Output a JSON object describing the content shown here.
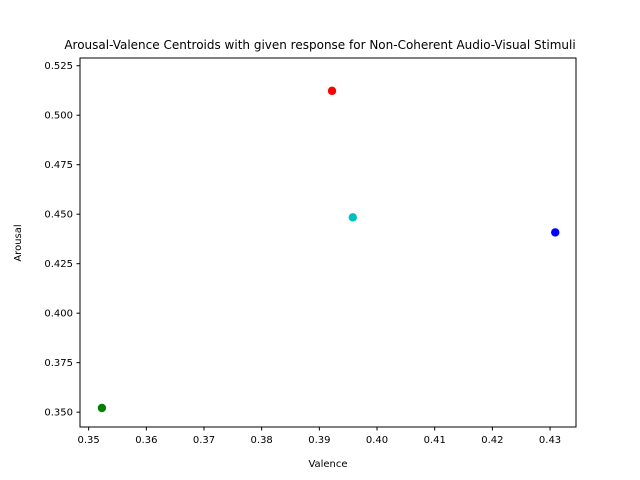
{
  "chart_data": {
    "type": "scatter",
    "title": "Arousal-Valence Centroids with given response for Non-Coherent Audio-Visual Stimuli",
    "xlabel": "Valence",
    "ylabel": "Arousal",
    "xlim": [
      0.3485,
      0.4345
    ],
    "ylim": [
      0.3425,
      0.5289
    ],
    "xticks": [
      0.35,
      0.36,
      0.37,
      0.38,
      0.39,
      0.4,
      0.41,
      0.42,
      0.43
    ],
    "xtick_labels": [
      "0.35",
      "0.36",
      "0.37",
      "0.38",
      "0.39",
      "0.40",
      "0.41",
      "0.42",
      "0.43"
    ],
    "yticks": [
      0.35,
      0.375,
      0.4,
      0.425,
      0.45,
      0.475,
      0.5,
      0.525
    ],
    "ytick_labels": [
      "0.350",
      "0.375",
      "0.400",
      "0.425",
      "0.450",
      "0.475",
      "0.500",
      "0.525"
    ],
    "grid": false,
    "points": [
      {
        "x": 0.3922,
        "y": 0.5123,
        "color": "#ff0000"
      },
      {
        "x": 0.3958,
        "y": 0.4484,
        "color": "#00bfbf"
      },
      {
        "x": 0.4309,
        "y": 0.4408,
        "color": "#0000ff"
      },
      {
        "x": 0.3523,
        "y": 0.3521,
        "color": "#008000"
      }
    ]
  }
}
